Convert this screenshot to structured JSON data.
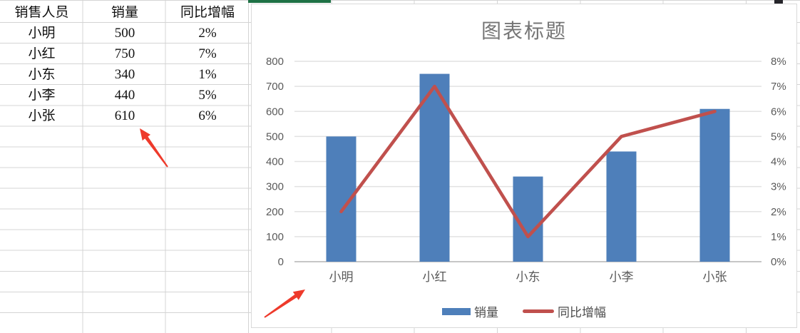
{
  "sheet": {
    "table": {
      "columns": [
        "销售人员",
        "销量",
        "同比增幅"
      ],
      "rows": [
        [
          "小明",
          "500",
          "2%"
        ],
        [
          "小红",
          "750",
          "7%"
        ],
        [
          "小东",
          "340",
          "1%"
        ],
        [
          "小李",
          "440",
          "5%"
        ],
        [
          "小张",
          "610",
          "6%"
        ]
      ]
    }
  },
  "chart_data": {
    "type": "bar",
    "combo": true,
    "title": "图表标题",
    "categories": [
      "小明",
      "小红",
      "小东",
      "小李",
      "小张"
    ],
    "series": [
      {
        "name": "销量",
        "type": "bar",
        "axis": "left",
        "values": [
          500,
          750,
          340,
          440,
          610
        ],
        "color": "#4E7FBA"
      },
      {
        "name": "同比增幅",
        "type": "line",
        "axis": "right",
        "values_percent": [
          2,
          7,
          1,
          5,
          6
        ],
        "color": "#C0504D"
      }
    ],
    "left_axis": {
      "min": 0,
      "max": 800,
      "step": 100,
      "tick_labels": [
        "0",
        "100",
        "200",
        "300",
        "400",
        "500",
        "600",
        "700",
        "800"
      ]
    },
    "right_axis": {
      "min_percent": 0,
      "max_percent": 8,
      "step_percent": 1,
      "tick_labels": [
        "0%",
        "1%",
        "2%",
        "3%",
        "4%",
        "5%",
        "6%",
        "7%",
        "8%"
      ]
    },
    "grid": true,
    "legend_position": "bottom"
  },
  "colors": {
    "bar": "#4E7FBA",
    "line": "#C0504D",
    "grid": "#E2E2E2",
    "baseline": "#C6C6C6",
    "axis_text": "#595959",
    "category_text": "#595959",
    "title_text": "#757575",
    "sheet_grid": "#D4D4D4",
    "excel_green": "#1E7145",
    "arrow": "#EE3A2B",
    "chart_border": "#D9D9D9"
  }
}
